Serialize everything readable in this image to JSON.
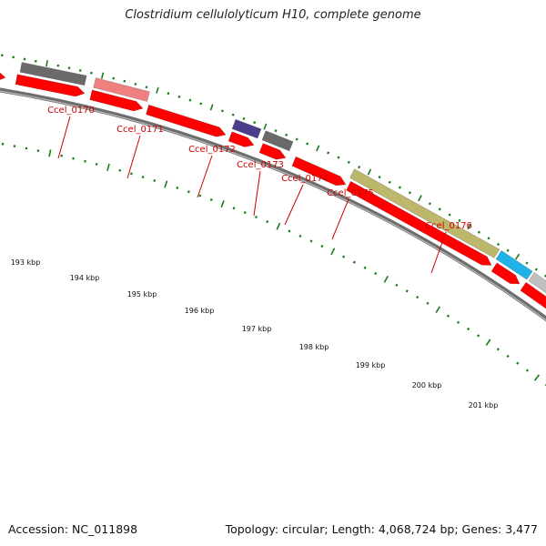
{
  "title": "Clostridium cellulolyticum H10, complete genome",
  "footer": {
    "accession": "Accession: NC_011898",
    "summary": "Topology: circular; Length: 4,068,724 bp; Genes: 3,477"
  },
  "colors": {
    "cds_red": "#ff0000",
    "track_gray": "#808080",
    "label_red": "#cc0000",
    "tick_green": "#1a7a1a",
    "gene_dark_gray": "#6a6a6a",
    "gene_pink": "#f08080",
    "gene_purple": "#4b3f8c",
    "gene_olive": "#bdb76b",
    "gene_cyan": "#20b2e8",
    "gene_light_gray": "#c0c0c0"
  },
  "gene_labels": [
    "Ccel_0170",
    "Ccel_0171",
    "Ccel_0172",
    "Ccel_0173",
    "Ccel_0174",
    "Ccel_0175",
    "Ccel_0176"
  ],
  "kbp_labels": [
    "193 kbp",
    "194 kbp",
    "195 kbp",
    "196 kbp",
    "197 kbp",
    "198 kbp",
    "199 kbp",
    "200 kbp",
    "201 kbp"
  ]
}
